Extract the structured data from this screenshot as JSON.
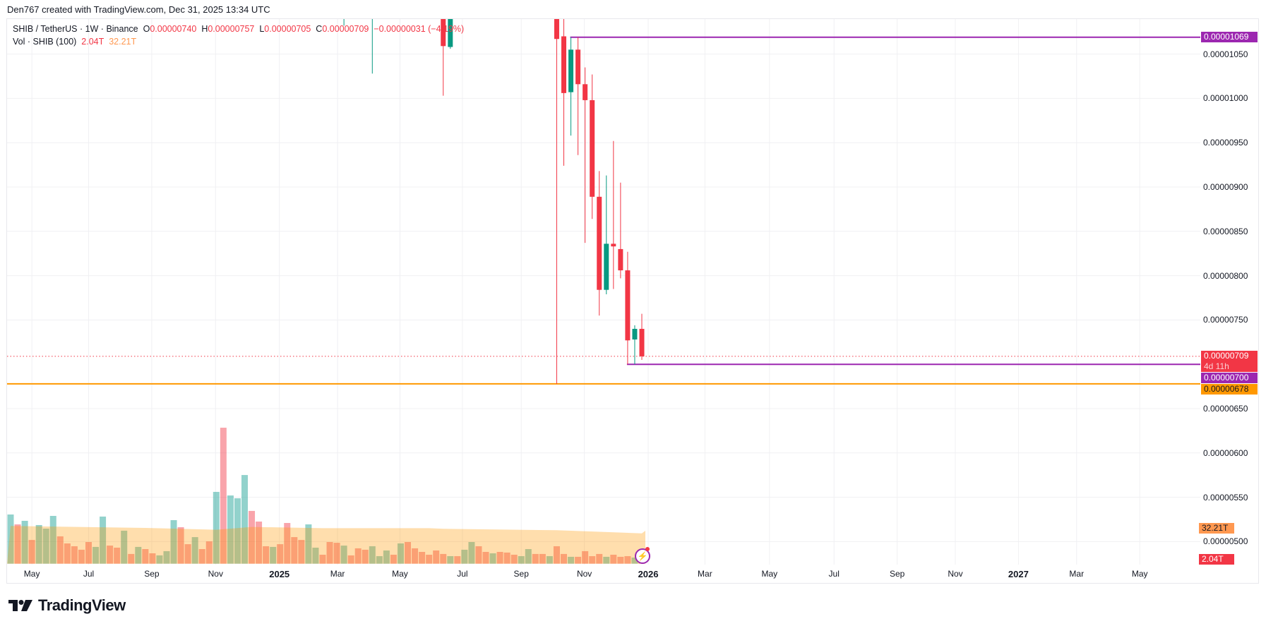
{
  "credit": "Den767 created with TradingView.com, Dec 31, 2025 13:34 UTC",
  "legend": {
    "symbol": "SHIB / TetherUS · 1W · Binance",
    "o_label": "O",
    "o": "0.00000740",
    "h_label": "H",
    "h": "0.00000757",
    "l_label": "L",
    "l": "0.00000705",
    "c_label": "C",
    "c": "0.00000709",
    "change": "−0.00000031 (−4.19%)",
    "vol_label": "Vol · SHIB (100)",
    "vol": "2.04T",
    "vol_ma": "32.21T"
  },
  "price_axis": {
    "unit": "1e-8",
    "ticks": [
      {
        "label": "0.00001050",
        "value": 1050
      },
      {
        "label": "0.00001000",
        "value": 1000
      },
      {
        "label": "0.00000950",
        "value": 950
      },
      {
        "label": "0.00000900",
        "value": 900
      },
      {
        "label": "0.00000850",
        "value": 850
      },
      {
        "label": "0.00000800",
        "value": 800
      },
      {
        "label": "0.00000750",
        "value": 750
      },
      {
        "label": "0.00000650",
        "value": 650
      },
      {
        "label": "0.00000600",
        "value": 600
      },
      {
        "label": "0.00000550",
        "value": 550
      },
      {
        "label": "0.00000500",
        "value": 500
      }
    ],
    "markers": [
      {
        "label": "0.00001069",
        "value": 1069,
        "color": "#9c27b0",
        "kind": "resistance-line"
      },
      {
        "label": "0.00000709",
        "sub": "4d 11h",
        "value": 709,
        "color": "#f23645",
        "kind": "last-price"
      },
      {
        "label": "0.00000700",
        "value": 700,
        "color": "#9c27b0",
        "kind": "support-line"
      },
      {
        "label": "0.00000678",
        "value": 678,
        "color": "#ff9800",
        "kind": "low-line"
      }
    ],
    "volume_markers": [
      {
        "label": "32.21T",
        "color": "#ff9850",
        "kind": "vol-ma"
      },
      {
        "label": "2.04T",
        "color": "#f23645",
        "kind": "vol"
      }
    ]
  },
  "time_axis": [
    {
      "label": "May",
      "week": 4.0
    },
    {
      "label": "Jul",
      "week": 12.0
    },
    {
      "label": "Sep",
      "week": 20.9
    },
    {
      "label": "Nov",
      "week": 29.9
    },
    {
      "label": "2025",
      "week": 38.9,
      "year": true
    },
    {
      "label": "Mar",
      "week": 47.1
    },
    {
      "label": "May",
      "week": 55.9
    },
    {
      "label": "Jul",
      "week": 64.7
    },
    {
      "label": "Sep",
      "week": 73.0
    },
    {
      "label": "Nov",
      "week": 81.9
    },
    {
      "label": "2026",
      "week": 90.9,
      "year": true
    },
    {
      "label": "Mar",
      "week": 98.9
    },
    {
      "label": "May",
      "week": 108.0
    },
    {
      "label": "Jul",
      "week": 117.1
    },
    {
      "label": "Sep",
      "week": 126.0
    },
    {
      "label": "Nov",
      "week": 134.2
    },
    {
      "label": "2027",
      "week": 143.1,
      "year": true
    },
    {
      "label": "Mar",
      "week": 151.3
    },
    {
      "label": "May",
      "week": 160.2
    }
  ],
  "colors": {
    "up": "#089981",
    "down": "#f23645",
    "purple": "#9c27b0",
    "orange": "#ff9800"
  },
  "chart_data": {
    "type": "candlestick",
    "title": "SHIB / TetherUS · 1W · Binance",
    "price_unit": "1e-8 USDT",
    "ylim": [
      480,
      1089
    ],
    "candles": [
      {
        "week": 48,
        "o": 1100,
        "h": 1200,
        "l": 1082,
        "c": 1150
      },
      {
        "week": 52,
        "o": 1090,
        "h": 1200,
        "l": 1028,
        "c": 1150
      },
      {
        "week": 62,
        "o": 1150,
        "h": 1160,
        "l": 1003,
        "c": 1059
      },
      {
        "week": 63,
        "o": 1058,
        "h": 1180,
        "l": 1056,
        "c": 1150
      },
      {
        "week": 78,
        "o": 1180,
        "h": 1200,
        "l": 678,
        "c": 1067
      },
      {
        "week": 79,
        "o": 1070,
        "h": 1100,
        "l": 924,
        "c": 1006
      },
      {
        "week": 80,
        "o": 1007,
        "h": 1069,
        "l": 958,
        "c": 1055
      },
      {
        "week": 81,
        "o": 1055,
        "h": 1069,
        "l": 936,
        "c": 1016
      },
      {
        "week": 82,
        "o": 1016,
        "h": 1035,
        "l": 837,
        "c": 998
      },
      {
        "week": 83,
        "o": 998,
        "h": 1027,
        "l": 864,
        "c": 889
      },
      {
        "week": 84,
        "o": 889,
        "h": 918,
        "l": 755,
        "c": 784
      },
      {
        "week": 85,
        "o": 784,
        "h": 913,
        "l": 779,
        "c": 836
      },
      {
        "week": 86,
        "o": 836,
        "h": 952,
        "l": 785,
        "c": 833
      },
      {
        "week": 87,
        "o": 830,
        "h": 905,
        "l": 797,
        "c": 806
      },
      {
        "week": 88,
        "o": 806,
        "h": 827,
        "l": 700,
        "c": 727
      },
      {
        "week": 89,
        "o": 728,
        "h": 744,
        "l": 700,
        "c": 740
      },
      {
        "week": 90,
        "o": 740,
        "h": 757,
        "l": 705,
        "c": 709
      }
    ],
    "volume_unit": "T",
    "volume": [
      52.2,
      41.7,
      45.5,
      25.2,
      41.0,
      37.2,
      50.7,
      29.0,
      21.5,
      18.5,
      14.8,
      23.0,
      17.8,
      50.0,
      19.2,
      17.0,
      35.0,
      10.3,
      17.8,
      15.5,
      11.0,
      8.8,
      13.3,
      46.2,
      38.7,
      20.7,
      28.2,
      15.5,
      23.7,
      76.2,
      144.3,
      72.4,
      69.4,
      94.1,
      56.0,
      44.7,
      18.5,
      17.8,
      20.7,
      43.2,
      28.2,
      25.2,
      41.7,
      17.0,
      9.5,
      23.0,
      22.2,
      19.2,
      8.8,
      16.3,
      14.8,
      18.5,
      8.0,
      14.0,
      9.5,
      21.5,
      23.0,
      16.3,
      12.5,
      9.5,
      14.0,
      10.3,
      8.0,
      8.0,
      14.8,
      23.0,
      18.5,
      12.5,
      11.0,
      12.5,
      11.8,
      9.5,
      8.0,
      15.5,
      10.3,
      10.3,
      8.0,
      18.5,
      10.3,
      7.3,
      7.3,
      13.3,
      8.0,
      10.3,
      7.3,
      9.5,
      7.3,
      8.0,
      6.5,
      2.04
    ],
    "volume_dir": "grgrgggrrrrrggrrgrgrrgggrrgrrgrgggrrrgrrrrggrrrgrrrgggrgrrrrrrgrggrrgrrrggrrgrrgrrrrgrrrgr",
    "volume_ma": [
      [
        1,
        40
      ],
      [
        20,
        38
      ],
      [
        30,
        36
      ],
      [
        35,
        39
      ],
      [
        45,
        37.7
      ],
      [
        60,
        37.7
      ],
      [
        62,
        37
      ],
      [
        78,
        35.5
      ],
      [
        101,
        35
      ],
      [
        90,
        32.21
      ]
    ],
    "lines": [
      {
        "name": "resistance",
        "value": 1069,
        "from_week": 80
      },
      {
        "name": "support",
        "value": 700,
        "from_week": 88
      },
      {
        "name": "low",
        "value": 678,
        "from_week": 0
      }
    ]
  }
}
